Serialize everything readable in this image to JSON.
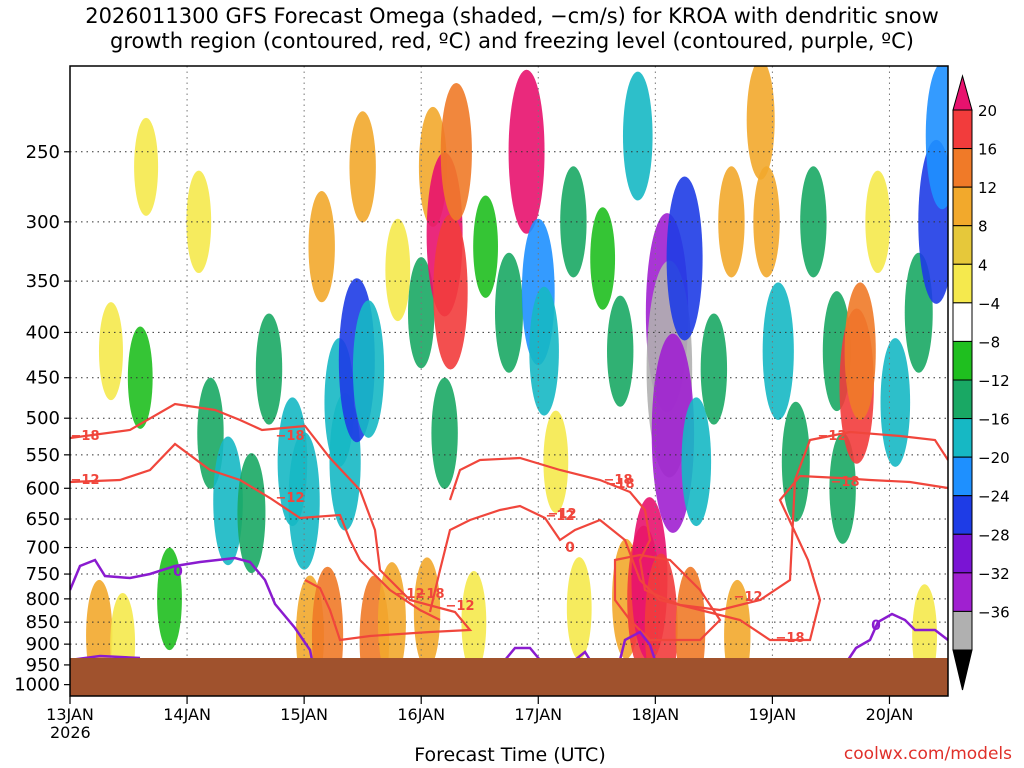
{
  "chart_data": {
    "type": "heatmap",
    "title_line1": "2026011300 GFS Forecast Omega (shaded, −cm/s) for KROA with dendritic snow",
    "title_line2": "growth region (contoured, red, ºC) and freezing level (contoured, purple, ºC)",
    "xlabel": "Forecast Time (UTC)",
    "ylabel": "",
    "x_ticks": [
      "13JAN",
      "14JAN",
      "15JAN",
      "16JAN",
      "17JAN",
      "18JAN",
      "19JAN",
      "20JAN"
    ],
    "x_tick_year": "2026",
    "x_range_days": [
      0,
      7.5
    ],
    "y_ticks": [
      250,
      300,
      350,
      400,
      450,
      500,
      550,
      600,
      650,
      700,
      750,
      800,
      850,
      900,
      950,
      1000
    ],
    "y_range_hpa": [
      200,
      1030
    ],
    "y_scale": "log-pressure",
    "colorbar": {
      "levels": [
        "20",
        "16",
        "12",
        "8",
        "4",
        "−4",
        "−8",
        "−12",
        "−16",
        "−20",
        "−24",
        "−28",
        "−32",
        "−36"
      ],
      "colors": [
        "#e8126e",
        "#f23c3c",
        "#f07a28",
        "#f2a92c",
        "#e6c83a",
        "#f5e94d",
        "#ffffff",
        "#1fbf1f",
        "#19a864",
        "#16b8c4",
        "#1e90ff",
        "#1e3ce6",
        "#7a14d4",
        "#a020d0",
        "#b0b0b0",
        "#000000"
      ]
    },
    "contours": {
      "dgz_labels": [
        "−18",
        "−12",
        "−18",
        "−12",
        "−18",
        "−12",
        "−12",
        "−18",
        "−12",
        "−18",
        "−12",
        "−18",
        "−12",
        "−18",
        "−12"
      ],
      "freezing_labels": [
        "0",
        "0",
        "0"
      ]
    },
    "colors": {
      "terrain": "#a0522d",
      "dgz_contour": "#f0463c",
      "freezing_contour": "#8a1bcf"
    },
    "cells": [
      {
        "t": 0.25,
        "p": 880,
        "v": 8
      },
      {
        "t": 0.45,
        "p": 900,
        "v": 6
      },
      {
        "t": 0.35,
        "p": 420,
        "v": 5
      },
      {
        "t": 0.65,
        "p": 260,
        "v": 5
      },
      {
        "t": 0.6,
        "p": 450,
        "v": -6
      },
      {
        "t": 0.85,
        "p": 800,
        "v": -6
      },
      {
        "t": 1.1,
        "p": 300,
        "v": 6
      },
      {
        "t": 1.2,
        "p": 520,
        "v": -8
      },
      {
        "t": 1.35,
        "p": 620,
        "v": -12
      },
      {
        "t": 1.55,
        "p": 640,
        "v": -10
      },
      {
        "t": 1.7,
        "p": 440,
        "v": -8
      },
      {
        "t": 1.9,
        "p": 560,
        "v": -12
      },
      {
        "t": 2.0,
        "p": 620,
        "v": -14
      },
      {
        "t": 2.05,
        "p": 880,
        "v": 10
      },
      {
        "t": 2.2,
        "p": 880,
        "v": 14
      },
      {
        "t": 2.15,
        "p": 320,
        "v": 8
      },
      {
        "t": 2.3,
        "p": 480,
        "v": -12
      },
      {
        "t": 2.35,
        "p": 560,
        "v": -14
      },
      {
        "t": 2.45,
        "p": 430,
        "v": -20
      },
      {
        "t": 2.55,
        "p": 440,
        "v": -14
      },
      {
        "t": 2.5,
        "p": 260,
        "v": 8
      },
      {
        "t": 2.6,
        "p": 890,
        "v": 12
      },
      {
        "t": 2.75,
        "p": 850,
        "v": 10
      },
      {
        "t": 2.8,
        "p": 340,
        "v": 6
      },
      {
        "t": 3.0,
        "p": 380,
        "v": -8
      },
      {
        "t": 3.05,
        "p": 830,
        "v": 8
      },
      {
        "t": 3.2,
        "p": 520,
        "v": -8
      },
      {
        "t": 3.1,
        "p": 260,
        "v": 10
      },
      {
        "t": 3.2,
        "p": 310,
        "v": 20
      },
      {
        "t": 3.25,
        "p": 360,
        "v": 18
      },
      {
        "t": 3.3,
        "p": 250,
        "v": 14
      },
      {
        "t": 3.45,
        "p": 850,
        "v": 6
      },
      {
        "t": 3.55,
        "p": 320,
        "v": -6
      },
      {
        "t": 3.75,
        "p": 380,
        "v": -10
      },
      {
        "t": 3.9,
        "p": 250,
        "v": 20
      },
      {
        "t": 4.0,
        "p": 360,
        "v": -16
      },
      {
        "t": 4.05,
        "p": 420,
        "v": -12
      },
      {
        "t": 4.15,
        "p": 560,
        "v": 6
      },
      {
        "t": 4.3,
        "p": 300,
        "v": -8
      },
      {
        "t": 4.35,
        "p": 820,
        "v": 6
      },
      {
        "t": 4.55,
        "p": 330,
        "v": -6
      },
      {
        "t": 4.7,
        "p": 420,
        "v": -8
      },
      {
        "t": 4.75,
        "p": 800,
        "v": 10
      },
      {
        "t": 4.85,
        "p": 240,
        "v": -12
      },
      {
        "t": 4.9,
        "p": 800,
        "v": 16
      },
      {
        "t": 4.95,
        "p": 760,
        "v": 20
      },
      {
        "t": 5.05,
        "p": 860,
        "v": 16
      },
      {
        "t": 5.1,
        "p": 380,
        "v": -28
      },
      {
        "t": 5.12,
        "p": 440,
        "v": -32
      },
      {
        "t": 5.15,
        "p": 520,
        "v": -28
      },
      {
        "t": 5.25,
        "p": 330,
        "v": -20
      },
      {
        "t": 5.3,
        "p": 870,
        "v": 12
      },
      {
        "t": 5.35,
        "p": 560,
        "v": -12
      },
      {
        "t": 5.5,
        "p": 440,
        "v": -8
      },
      {
        "t": 5.65,
        "p": 300,
        "v": 8
      },
      {
        "t": 5.7,
        "p": 880,
        "v": 8
      },
      {
        "t": 5.9,
        "p": 230,
        "v": 10
      },
      {
        "t": 5.95,
        "p": 300,
        "v": 8
      },
      {
        "t": 6.05,
        "p": 420,
        "v": -14
      },
      {
        "t": 6.2,
        "p": 560,
        "v": -10
      },
      {
        "t": 6.35,
        "p": 300,
        "v": -8
      },
      {
        "t": 6.55,
        "p": 420,
        "v": -10
      },
      {
        "t": 6.6,
        "p": 600,
        "v": -8
      },
      {
        "t": 6.72,
        "p": 460,
        "v": 18
      },
      {
        "t": 6.75,
        "p": 420,
        "v": 14
      },
      {
        "t": 6.9,
        "p": 300,
        "v": 6
      },
      {
        "t": 7.05,
        "p": 480,
        "v": -12
      },
      {
        "t": 7.25,
        "p": 380,
        "v": -10
      },
      {
        "t": 7.4,
        "p": 300,
        "v": -20
      },
      {
        "t": 7.45,
        "p": 240,
        "v": -16
      },
      {
        "t": 7.3,
        "p": 880,
        "v": 6
      }
    ]
  }
}
